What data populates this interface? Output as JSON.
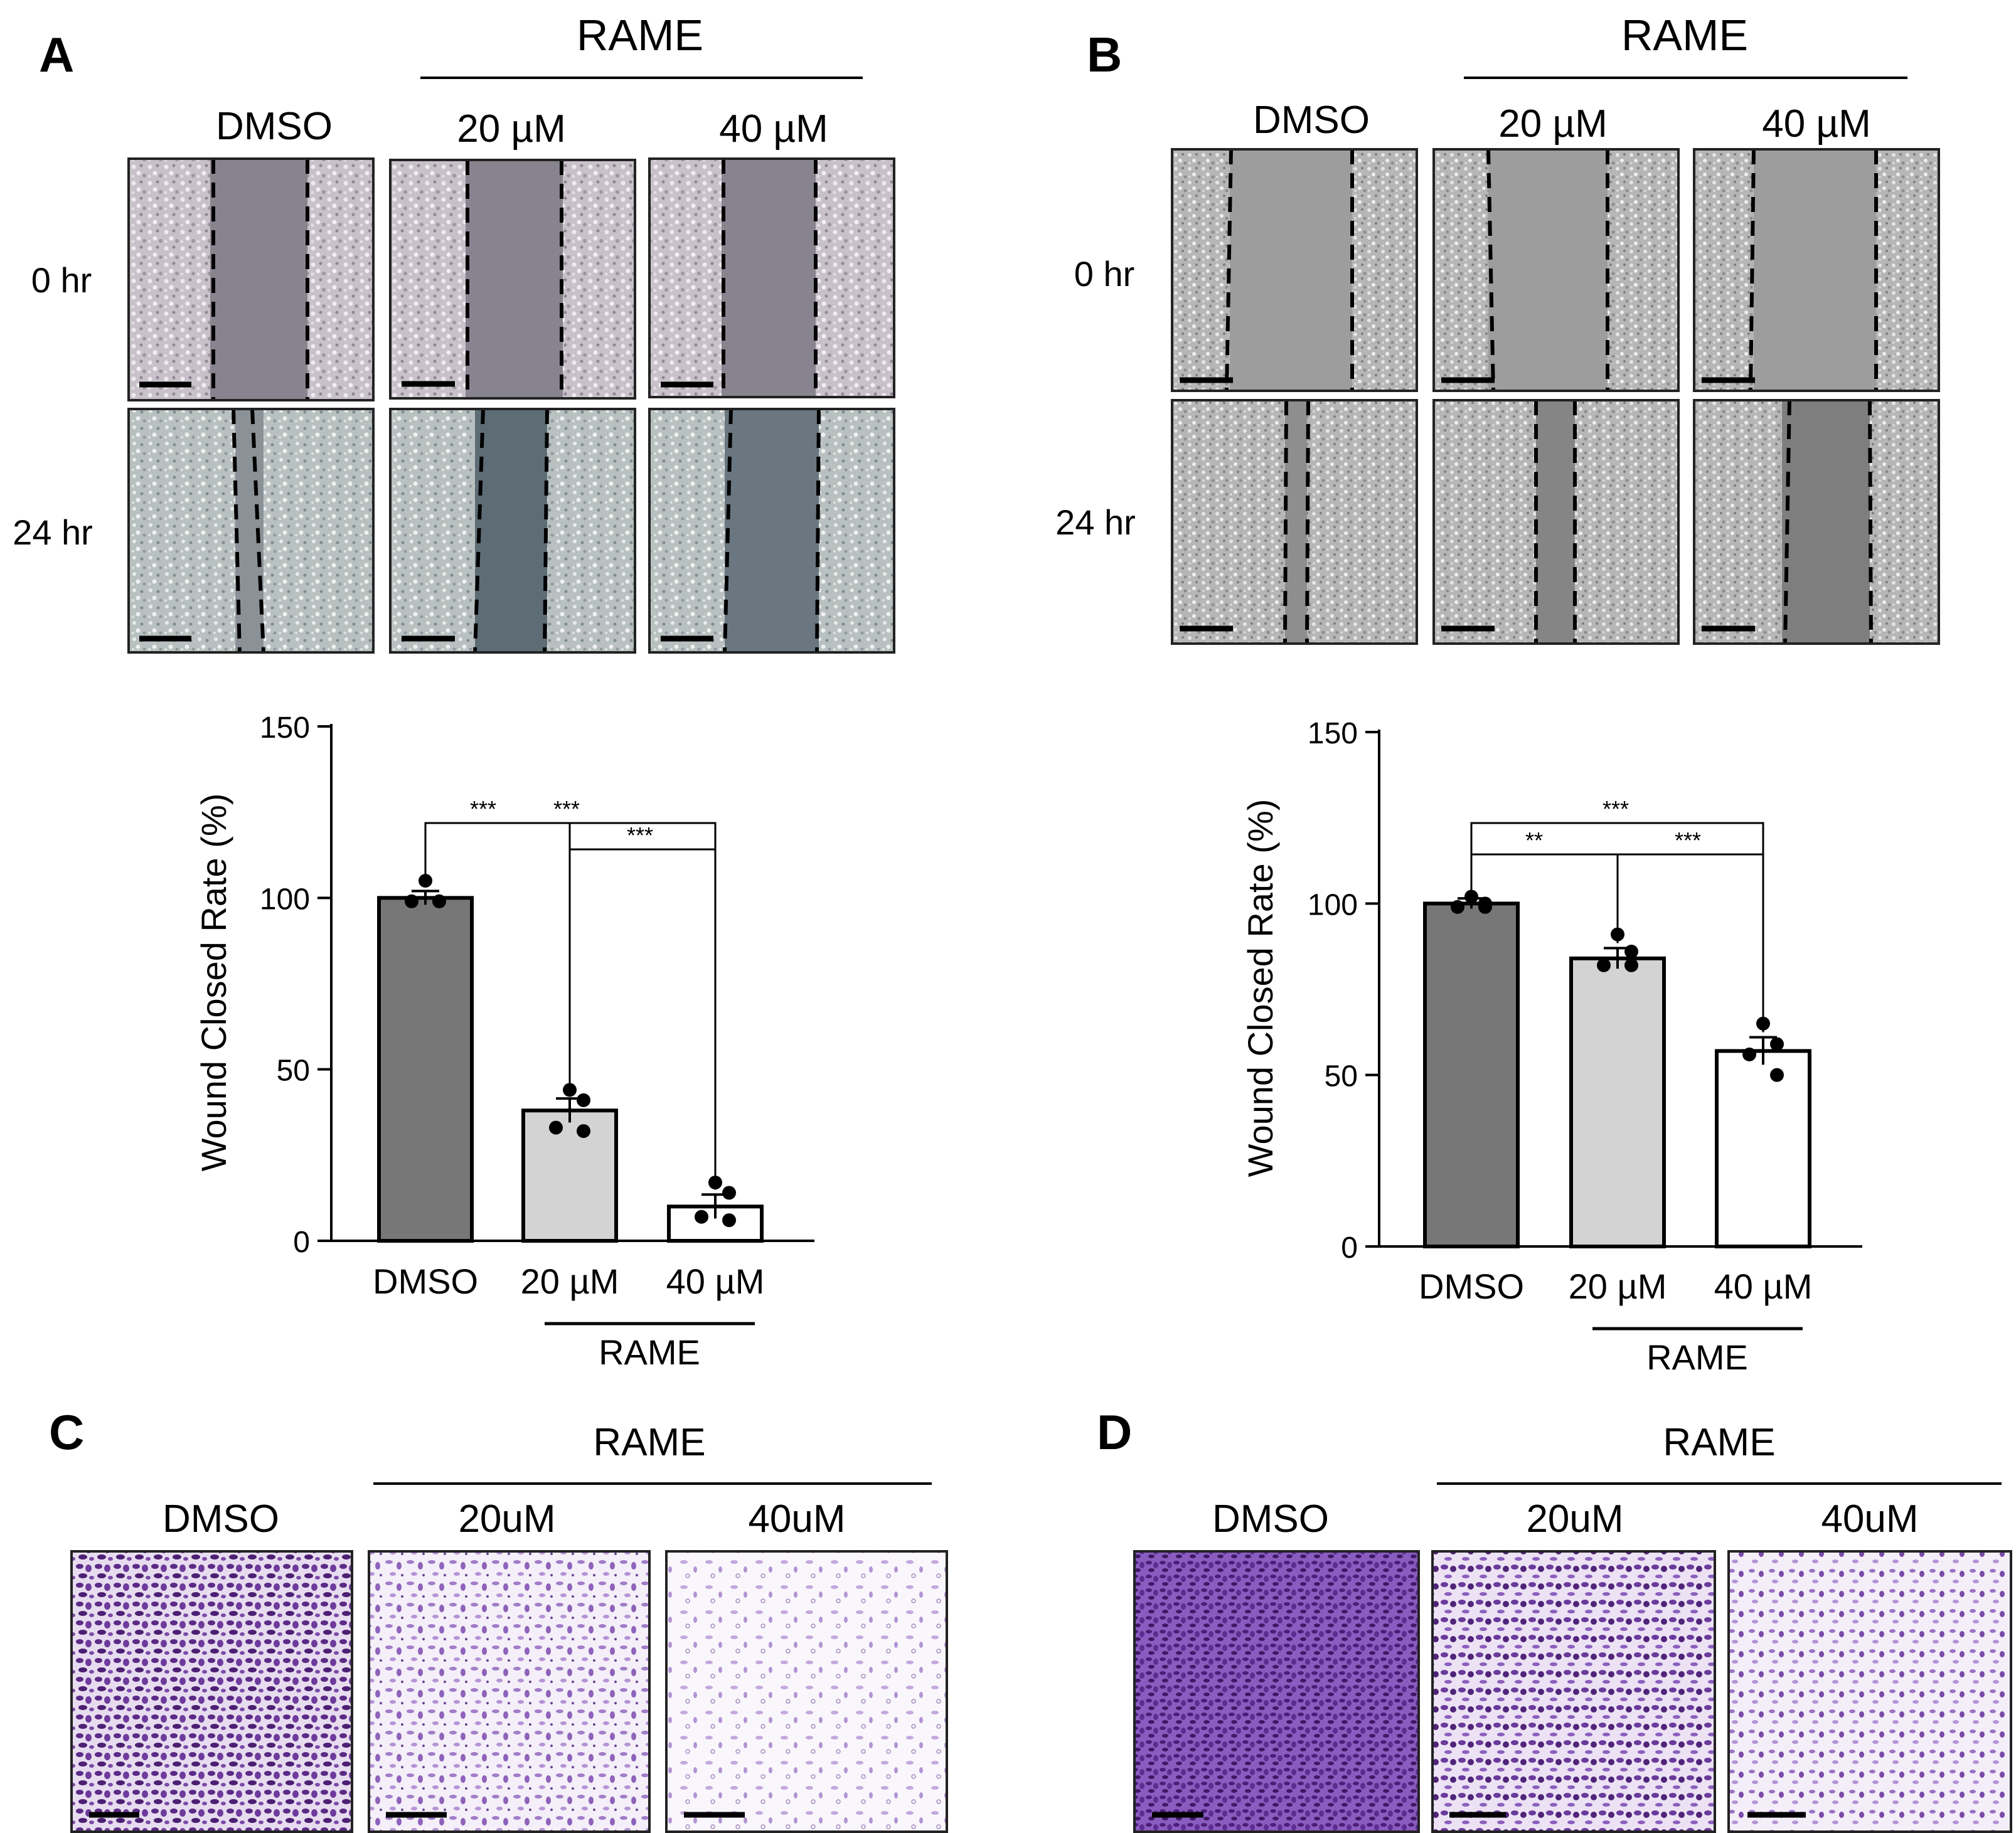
{
  "panels": {
    "A": {
      "letter": "A",
      "group": "RAME",
      "columns": [
        "DMSO",
        "20 µM",
        "40 µM"
      ],
      "rows": [
        "0 hr",
        "24 hr"
      ]
    },
    "B": {
      "letter": "B",
      "group": "RAME",
      "columns": [
        "DMSO",
        "20 µM",
        "40 µM"
      ],
      "rows": [
        "0 hr",
        "24 hr"
      ]
    },
    "C": {
      "letter": "C",
      "group": "RAME",
      "columns": [
        "DMSO",
        "20uM",
        "40uM"
      ]
    },
    "D": {
      "letter": "D",
      "group": "RAME",
      "columns": [
        "DMSO",
        "20uM",
        "40uM"
      ]
    }
  },
  "chart_data": [
    {
      "type": "bar",
      "panel": "A",
      "categories": [
        "DMSO",
        "20 µM",
        "40 µM"
      ],
      "values": [
        100,
        38,
        10
      ],
      "errors": [
        2,
        3.5,
        3.5
      ],
      "points": [
        [
          105,
          99,
          99,
          99
        ],
        [
          44,
          41,
          33,
          32
        ],
        [
          17,
          14,
          7,
          6
        ]
      ],
      "bar_colors": [
        "#777777",
        "#d3d3d3",
        "#ffffff"
      ],
      "ylabel": "Wound Closed Rate (%)",
      "ylim": [
        0,
        150
      ],
      "yticks": [
        0,
        50,
        100,
        150
      ],
      "group_label": "RAME",
      "comparisons": [
        {
          "from": "DMSO",
          "to": "20 µM",
          "label": "***"
        },
        {
          "from": "DMSO",
          "to": "40 µM",
          "label": "***"
        },
        {
          "from": "20 µM",
          "to": "40 µM",
          "label": "***"
        }
      ]
    },
    {
      "type": "bar",
      "panel": "B",
      "categories": [
        "DMSO",
        "20 µM",
        "40 µM"
      ],
      "values": [
        100,
        84,
        57
      ],
      "errors": [
        1.5,
        3,
        4
      ],
      "points": [
        [
          102,
          100,
          99,
          99
        ],
        [
          91,
          86,
          82,
          82
        ],
        [
          65,
          59,
          56,
          50
        ]
      ],
      "bar_colors": [
        "#777777",
        "#d3d3d3",
        "#ffffff"
      ],
      "ylabel": "Wound Closed Rate (%)",
      "ylim": [
        0,
        150
      ],
      "yticks": [
        0,
        50,
        100,
        150
      ],
      "group_label": "RAME",
      "comparisons": [
        {
          "from": "DMSO",
          "to": "20 µM",
          "label": "**"
        },
        {
          "from": "DMSO",
          "to": "40 µM",
          "label": "***"
        },
        {
          "from": "20 µM",
          "to": "40 µM",
          "label": "***"
        }
      ]
    }
  ]
}
